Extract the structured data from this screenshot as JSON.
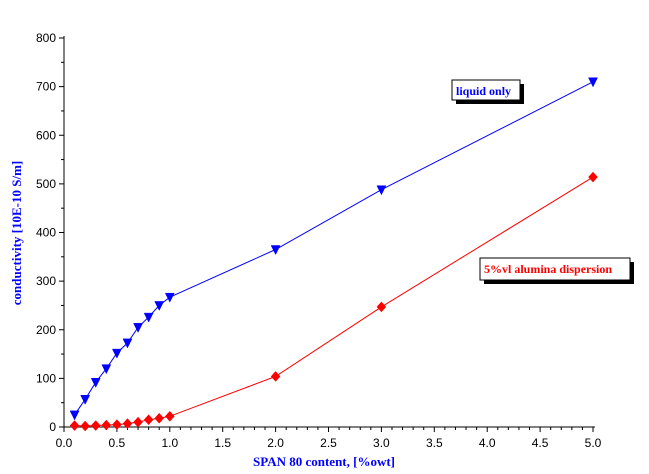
{
  "chart_data": {
    "type": "line",
    "xlabel": "SPAN 80 content, [%owt]",
    "ylabel": "conductivity [10E-10 S/m]",
    "xlim": [
      0,
      5
    ],
    "ylim": [
      0,
      800
    ],
    "xticks": [
      "0.0",
      "0.5",
      "1.0",
      "1.5",
      "2.0",
      "2.5",
      "3.0",
      "3.5",
      "4.0",
      "4.5",
      "5.0"
    ],
    "yticks": [
      "0",
      "100",
      "200",
      "300",
      "400",
      "500",
      "600",
      "700",
      "800"
    ],
    "grid": false,
    "series": [
      {
        "name": "liquid only",
        "color": "#0000ff",
        "marker": "triangle-down",
        "x": [
          0.1,
          0.2,
          0.3,
          0.4,
          0.5,
          0.6,
          0.7,
          0.8,
          0.9,
          1.0,
          2.0,
          3.0,
          5.0
        ],
        "y": [
          25,
          57,
          92,
          120,
          152,
          173,
          205,
          226,
          250,
          267,
          365,
          488,
          710
        ]
      },
      {
        "name": "5%vl alumina dispersion",
        "color": "#ff0000",
        "marker": "diamond",
        "x": [
          0.1,
          0.2,
          0.3,
          0.4,
          0.5,
          0.6,
          0.7,
          0.8,
          0.9,
          1.0,
          2.0,
          3.0,
          5.0
        ],
        "y": [
          3,
          2,
          3,
          4,
          5,
          7,
          10,
          15,
          18,
          22,
          104,
          247,
          514
        ]
      }
    ]
  }
}
